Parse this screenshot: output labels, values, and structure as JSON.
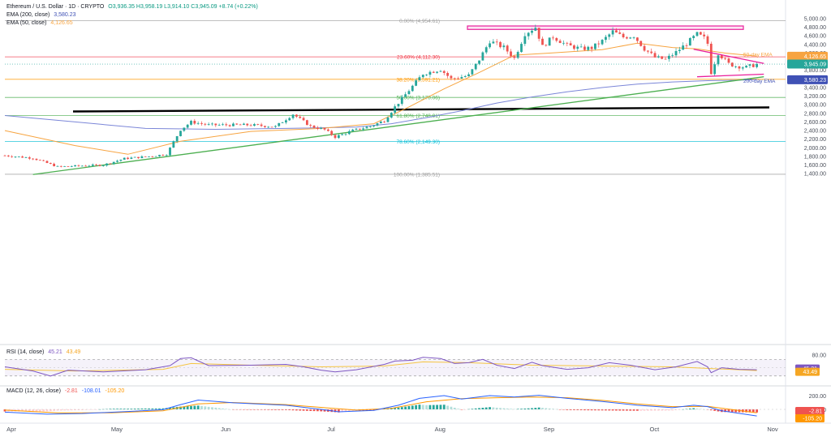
{
  "header": {
    "symbol": "Ethereum / U.S. Dollar · 1D · CRYPTO",
    "ohlc": "O3,936.35 H3,958.19 L3,914.10 C3,945.09 +8.74 (+0.22%)",
    "ema200_label": "EMA (200, close)",
    "ema200_value": "3,580.23",
    "ema50_label": "EMA (50, close)",
    "ema50_value": "4,126.65"
  },
  "colors": {
    "up": "#26a69a",
    "down": "#ef5350",
    "ema50": "#f7a440",
    "ema200": "#7b86d8",
    "trend": "#4caf50",
    "triangle": "#e91e9b",
    "horizontal": "#000000",
    "rsi": "#7e57c2",
    "rsi_ma": "#f5c542",
    "macd": "#2962ff",
    "signal": "#ff9800"
  },
  "chart_data": [
    {
      "type": "candlestick",
      "title": "Ethereum / U.S. Dollar · 1D · CRYPTO",
      "ylim": [
        1300,
        5050
      ],
      "y_ticks": [
        "5,000.00",
        "4,800.00",
        "4,600.00",
        "4,400.00",
        "4,200.00",
        "4,000.00",
        "3,800.00",
        "3,600.00",
        "3,400.00",
        "3,200.00",
        "3,000.00",
        "2,800.00",
        "2,600.00",
        "2,400.00",
        "2,200.00",
        "2,000.00",
        "1,800.00",
        "1,600.00",
        "1,400.00"
      ],
      "x_ticks": [
        "Apr",
        "May",
        "Jun",
        "Jul",
        "Aug",
        "Sep",
        "Oct",
        "Nov"
      ],
      "anchors": [
        [
          0,
          1820
        ],
        [
          8,
          1760
        ],
        [
          15,
          1560
        ],
        [
          24,
          1590
        ],
        [
          28,
          1600
        ],
        [
          34,
          1750
        ],
        [
          41,
          1800
        ],
        [
          46,
          1850
        ],
        [
          50,
          2420
        ],
        [
          53,
          2600
        ],
        [
          58,
          2530
        ],
        [
          70,
          2530
        ],
        [
          77,
          2490
        ],
        [
          82,
          2780
        ],
        [
          87,
          2500
        ],
        [
          91,
          2420
        ],
        [
          94,
          2250
        ],
        [
          99,
          2400
        ],
        [
          104,
          2500
        ],
        [
          108,
          2630
        ],
        [
          111,
          2950
        ],
        [
          116,
          3430
        ],
        [
          119,
          3720
        ],
        [
          124,
          3820
        ],
        [
          127,
          3600
        ],
        [
          132,
          3680
        ],
        [
          135,
          4050
        ],
        [
          138,
          4480
        ],
        [
          142,
          4330
        ],
        [
          145,
          4080
        ],
        [
          148,
          4650
        ],
        [
          151,
          4800
        ],
        [
          153,
          4350
        ],
        [
          156,
          4580
        ],
        [
          160,
          4380
        ],
        [
          164,
          4300
        ],
        [
          167,
          4320
        ],
        [
          170,
          4480
        ],
        [
          173,
          4700
        ],
        [
          176,
          4570
        ],
        [
          179,
          4600
        ],
        [
          182,
          4300
        ],
        [
          185,
          4100
        ],
        [
          188,
          4050
        ],
        [
          191,
          4220
        ],
        [
          194,
          4420
        ],
        [
          197,
          4640
        ],
        [
          199,
          4550
        ],
        [
          200,
          4420
        ],
        [
          201,
          3750
        ],
        [
          203,
          4200
        ],
        [
          206,
          3950
        ],
        [
          208,
          3900
        ],
        [
          211,
          3870
        ],
        [
          214,
          3940
        ]
      ],
      "ema50": [
        [
          0,
          2400
        ],
        [
          20,
          2050
        ],
        [
          35,
          1850
        ],
        [
          50,
          2150
        ],
        [
          70,
          2380
        ],
        [
          90,
          2450
        ],
        [
          105,
          2560
        ],
        [
          115,
          2950
        ],
        [
          125,
          3370
        ],
        [
          135,
          3750
        ],
        [
          145,
          4150
        ],
        [
          155,
          4200
        ],
        [
          170,
          4280
        ],
        [
          180,
          4430
        ],
        [
          190,
          4330
        ],
        [
          197,
          4300
        ],
        [
          205,
          4200
        ],
        [
          214,
          4130
        ]
      ],
      "ema200": [
        [
          0,
          2750
        ],
        [
          20,
          2600
        ],
        [
          40,
          2450
        ],
        [
          60,
          2430
        ],
        [
          80,
          2450
        ],
        [
          100,
          2480
        ],
        [
          110,
          2560
        ],
        [
          120,
          2700
        ],
        [
          130,
          2860
        ],
        [
          140,
          3040
        ],
        [
          150,
          3180
        ],
        [
          160,
          3300
        ],
        [
          170,
          3400
        ],
        [
          180,
          3480
        ],
        [
          190,
          3530
        ],
        [
          200,
          3560
        ],
        [
          214,
          3580
        ]
      ],
      "fibonacci": [
        {
          "level": 4954.61,
          "label": "0.00% (4,954.61)"
        },
        {
          "level": 4112.3,
          "label": "23.60% (4,112.30)"
        },
        {
          "level": 3591.21,
          "label": "38.20% (3,591.21)"
        },
        {
          "level": 3170.06,
          "label": "50.00% (3,170.06)"
        },
        {
          "level": 2748.91,
          "label": "61.80% (2,748.91)"
        },
        {
          "level": 2149.3,
          "label": "78.60% (2,149.30)"
        },
        {
          "level": 1385.51,
          "label": "100.00% (1,385.51)"
        }
      ],
      "horizontal_support": 2900,
      "resistance_zone": [
        4750,
        4830
      ],
      "support_trend": [
        [
          8,
          1380
        ],
        [
          216,
          3650
        ]
      ],
      "triangle_upper": [
        [
          196,
          4290
        ],
        [
          216,
          3960
        ]
      ],
      "triangle_lower": [
        [
          197,
          3650
        ],
        [
          216,
          3710
        ]
      ],
      "annotations": [
        "50-day EMA",
        "200-day EMA"
      ],
      "price_tags": [
        {
          "value": 4126.65,
          "label": "4,126.65",
          "color": "#f7a440"
        },
        {
          "value": 3945.09,
          "label": "3,945.09",
          "color": "#26a69a"
        },
        {
          "value": 3580.23,
          "label": "3,580.23",
          "color": "#3f51b5"
        }
      ]
    },
    {
      "type": "line",
      "title": "RSI (14, close)",
      "current_rsi": "45.21",
      "current_ma": "43.49",
      "bands": [
        70,
        30
      ],
      "ylim": [
        10,
        100
      ],
      "y_ticks": [
        "80.00"
      ],
      "rsi": [
        [
          0,
          52
        ],
        [
          8,
          42
        ],
        [
          13,
          30
        ],
        [
          18,
          44
        ],
        [
          28,
          40
        ],
        [
          40,
          45
        ],
        [
          47,
          55
        ],
        [
          50,
          72
        ],
        [
          53,
          74
        ],
        [
          58,
          55
        ],
        [
          70,
          56
        ],
        [
          80,
          58
        ],
        [
          85,
          52
        ],
        [
          90,
          44
        ],
        [
          94,
          40
        ],
        [
          100,
          45
        ],
        [
          108,
          58
        ],
        [
          111,
          66
        ],
        [
          116,
          68
        ],
        [
          119,
          75
        ],
        [
          124,
          72
        ],
        [
          128,
          60
        ],
        [
          132,
          62
        ],
        [
          136,
          70
        ],
        [
          140,
          56
        ],
        [
          145,
          48
        ],
        [
          150,
          63
        ],
        [
          153,
          55
        ],
        [
          160,
          46
        ],
        [
          166,
          50
        ],
        [
          172,
          62
        ],
        [
          178,
          56
        ],
        [
          185,
          45
        ],
        [
          191,
          52
        ],
        [
          197,
          65
        ],
        [
          200,
          52
        ],
        [
          201,
          38
        ],
        [
          204,
          50
        ],
        [
          209,
          46
        ],
        [
          214,
          45
        ]
      ],
      "rsi_ma": [
        [
          0,
          46
        ],
        [
          20,
          42
        ],
        [
          45,
          46
        ],
        [
          53,
          60
        ],
        [
          70,
          56
        ],
        [
          90,
          52
        ],
        [
          108,
          54
        ],
        [
          119,
          64
        ],
        [
          132,
          62
        ],
        [
          150,
          56
        ],
        [
          170,
          54
        ],
        [
          190,
          52
        ],
        [
          214,
          43
        ]
      ],
      "labels": [
        "45.21",
        "43.49"
      ]
    },
    {
      "type": "bar",
      "title": "MACD (12, 26, close)",
      "macd_params": "-2.81",
      "signal_params": "-108.01",
      "hist_params": "-105.20",
      "ylim": [
        -260,
        300
      ],
      "y_ticks": [
        "200.00",
        "0.00"
      ],
      "macd": [
        [
          0,
          -40
        ],
        [
          12,
          -70
        ],
        [
          22,
          -60
        ],
        [
          35,
          -30
        ],
        [
          45,
          -5
        ],
        [
          50,
          70
        ],
        [
          55,
          135
        ],
        [
          65,
          95
        ],
        [
          80,
          60
        ],
        [
          90,
          0
        ],
        [
          95,
          -35
        ],
        [
          105,
          -15
        ],
        [
          112,
          60
        ],
        [
          118,
          160
        ],
        [
          125,
          200
        ],
        [
          130,
          150
        ],
        [
          138,
          200
        ],
        [
          145,
          180
        ],
        [
          152,
          205
        ],
        [
          160,
          160
        ],
        [
          170,
          115
        ],
        [
          180,
          60
        ],
        [
          190,
          25
        ],
        [
          196,
          60
        ],
        [
          200,
          40
        ],
        [
          204,
          -20
        ],
        [
          214,
          -95
        ]
      ],
      "signal": [
        [
          0,
          -10
        ],
        [
          15,
          -50
        ],
        [
          30,
          -50
        ],
        [
          45,
          -20
        ],
        [
          55,
          80
        ],
        [
          65,
          100
        ],
        [
          80,
          70
        ],
        [
          92,
          20
        ],
        [
          100,
          -10
        ],
        [
          110,
          15
        ],
        [
          120,
          110
        ],
        [
          130,
          155
        ],
        [
          140,
          170
        ],
        [
          150,
          180
        ],
        [
          160,
          170
        ],
        [
          170,
          130
        ],
        [
          180,
          80
        ],
        [
          190,
          40
        ],
        [
          200,
          45
        ],
        [
          214,
          -50
        ]
      ],
      "labels": [
        "-2.81",
        "-105.20"
      ]
    }
  ]
}
